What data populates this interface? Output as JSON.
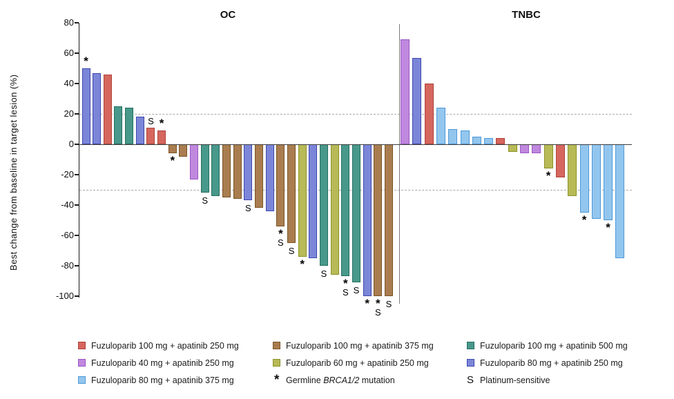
{
  "figure_title": "",
  "y_axis": {
    "title": "Best change from baseline in target lesion (%)",
    "ticks": [
      80,
      60,
      40,
      20,
      0,
      -20,
      -40,
      -60,
      -80,
      -100
    ]
  },
  "chart_data": {
    "type": "bar",
    "subtype": "waterfall",
    "ylabel": "Best change from baseline in target lesion (%)",
    "ylim": [
      -100,
      80
    ],
    "grid": false,
    "reference_lines": [
      20,
      -30
    ],
    "groups": {
      "red": {
        "label": "Fuzuloparib 100 mg + apatinib 250 mg",
        "fill": "#d5675e",
        "border": "#ae423b"
      },
      "purple": {
        "label": "Fuzuloparib 40 mg + apatinib 250 mg",
        "fill": "#c088de",
        "border": "#9a55c4"
      },
      "sky": {
        "label": "Fuzuloparib 80 mg + apatinib 375 mg",
        "fill": "#93c6ee",
        "border": "#4e99d8"
      },
      "brown": {
        "label": "Fuzuloparib 100 mg + apatinib 375 mg",
        "fill": "#a97d4f",
        "border": "#7b5426"
      },
      "olive": {
        "label": "Fuzuloparib 60 mg + apatinib 250 mg",
        "fill": "#b7ba57",
        "border": "#8e9226"
      },
      "teal": {
        "label": "Fuzuloparib 100 mg + apatinib 500 mg",
        "fill": "#48988b",
        "border": "#23705f"
      },
      "slate": {
        "label": "Fuzuloparib 80 mg + apatinib 250 mg",
        "fill": "#7c86d8",
        "border": "#3c47ae"
      }
    },
    "symbol_key": {
      "star": "Germline BRCA1/2 mutation",
      "S": "Platinum-sensitive"
    },
    "panels": [
      {
        "title": "OC",
        "bars": [
          {
            "value": 50,
            "group": "slate",
            "star": true
          },
          {
            "value": 47,
            "group": "slate"
          },
          {
            "value": 46,
            "group": "red"
          },
          {
            "value": 25,
            "group": "teal"
          },
          {
            "value": 24,
            "group": "teal"
          },
          {
            "value": 18,
            "group": "slate"
          },
          {
            "value": 11,
            "group": "red",
            "s": true
          },
          {
            "value": 9,
            "group": "red",
            "star": true
          },
          {
            "value": -6,
            "group": "brown",
            "star": true
          },
          {
            "value": -8,
            "group": "brown"
          },
          {
            "value": -23,
            "group": "purple"
          },
          {
            "value": -32,
            "group": "teal",
            "s": true
          },
          {
            "value": -34,
            "group": "teal"
          },
          {
            "value": -35,
            "group": "brown"
          },
          {
            "value": -36,
            "group": "brown"
          },
          {
            "value": -37,
            "group": "slate",
            "s": true
          },
          {
            "value": -42,
            "group": "brown"
          },
          {
            "value": -44,
            "group": "slate"
          },
          {
            "value": -54,
            "group": "brown",
            "star": true,
            "s": true
          },
          {
            "value": -65,
            "group": "brown",
            "s": true
          },
          {
            "value": -74,
            "group": "olive",
            "star": true
          },
          {
            "value": -75,
            "group": "slate"
          },
          {
            "value": -80,
            "group": "teal",
            "s": true
          },
          {
            "value": -86,
            "group": "olive"
          },
          {
            "value": -87,
            "group": "teal",
            "star": true,
            "s": true
          },
          {
            "value": -91,
            "group": "teal",
            "s": true
          },
          {
            "value": -100,
            "group": "slate",
            "star": true
          },
          {
            "value": -100,
            "group": "brown",
            "star": true,
            "s": true
          },
          {
            "value": -100,
            "group": "brown",
            "s": true
          }
        ]
      },
      {
        "title": "TNBC",
        "bars": [
          {
            "value": 69,
            "group": "purple"
          },
          {
            "value": 57,
            "group": "slate"
          },
          {
            "value": 40,
            "group": "red"
          },
          {
            "value": 24,
            "group": "sky"
          },
          {
            "value": 10,
            "group": "sky"
          },
          {
            "value": 9,
            "group": "sky"
          },
          {
            "value": 5,
            "group": "sky"
          },
          {
            "value": 4,
            "group": "sky"
          },
          {
            "value": 4,
            "group": "red"
          },
          {
            "value": -5,
            "group": "olive"
          },
          {
            "value": -6,
            "group": "purple"
          },
          {
            "value": -6,
            "group": "purple"
          },
          {
            "value": -16,
            "group": "olive",
            "star": true
          },
          {
            "value": -22,
            "group": "red"
          },
          {
            "value": -34,
            "group": "olive"
          },
          {
            "value": -45,
            "group": "sky",
            "star": true
          },
          {
            "value": -49,
            "group": "sky"
          },
          {
            "value": -50,
            "group": "sky",
            "star": true
          },
          {
            "value": -75,
            "group": "sky"
          }
        ]
      }
    ]
  },
  "legend": {
    "items": [
      {
        "col": 0,
        "row": 0,
        "group": "red"
      },
      {
        "col": 0,
        "row": 1,
        "group": "purple"
      },
      {
        "col": 0,
        "row": 2,
        "group": "sky"
      },
      {
        "col": 1,
        "row": 0,
        "group": "brown"
      },
      {
        "col": 1,
        "row": 1,
        "group": "olive"
      },
      {
        "col": 1,
        "row": 2,
        "symbol": "*",
        "name": "germline-brca-mutation-key",
        "label_parts": [
          {
            "text": "Germline "
          },
          {
            "text": "BRCA1/2",
            "italic": true
          },
          {
            "text": " mutation"
          }
        ]
      },
      {
        "col": 2,
        "row": 0,
        "group": "teal"
      },
      {
        "col": 2,
        "row": 1,
        "group": "slate"
      },
      {
        "col": 2,
        "row": 2,
        "symbol": "S",
        "name": "platinum-sensitive-key",
        "label_parts": [
          {
            "text": "Platinum-sensitive"
          }
        ]
      }
    ]
  }
}
